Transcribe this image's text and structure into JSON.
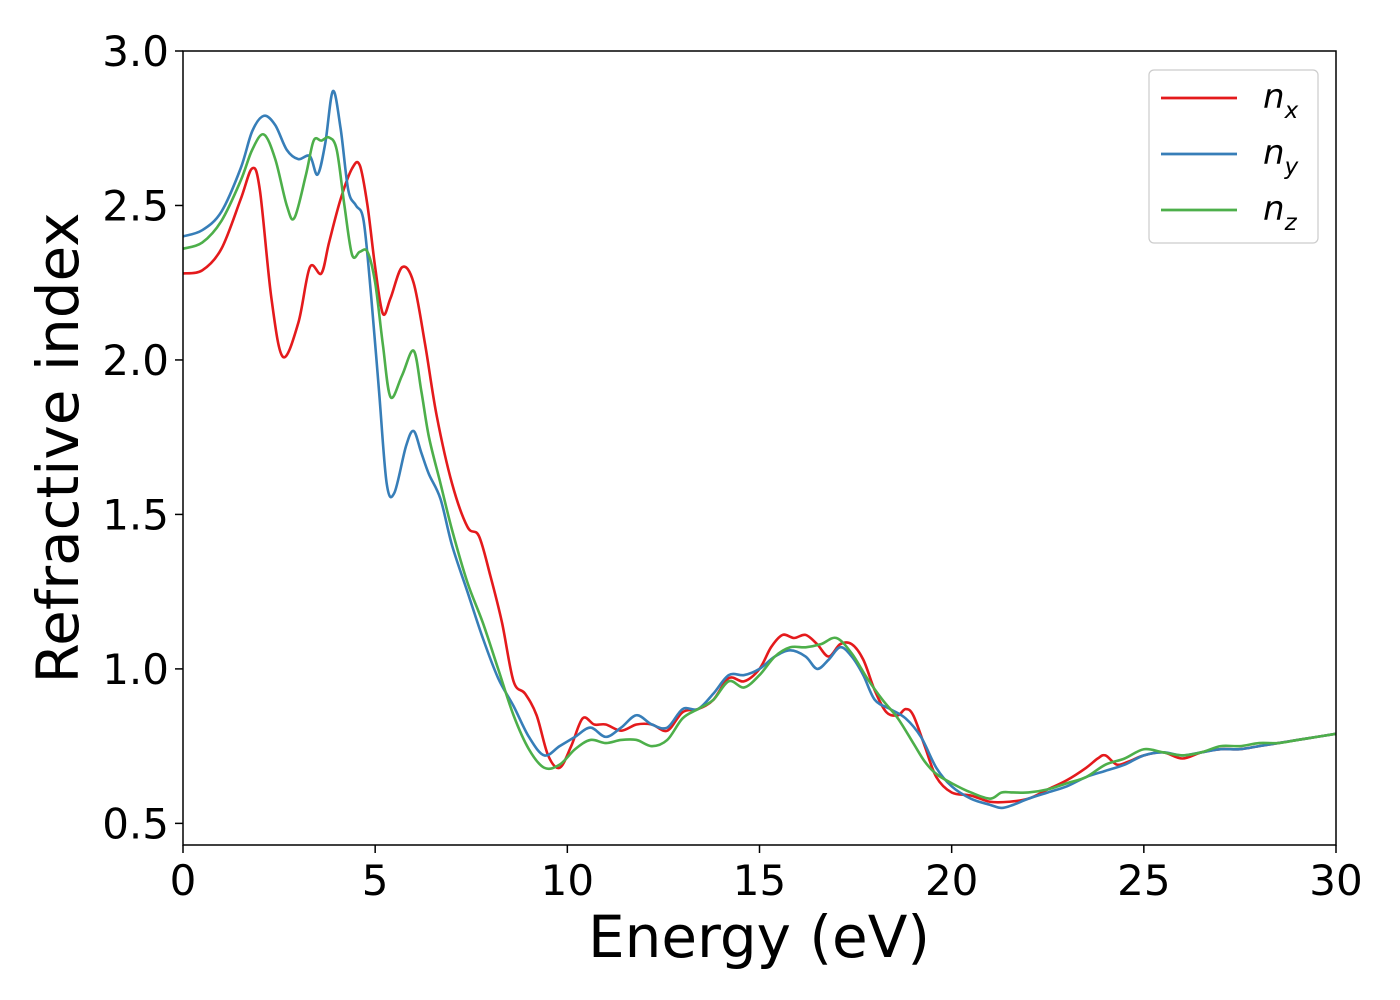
{
  "chart_data": {
    "type": "line",
    "xlabel": "Energy (eV)",
    "ylabel": "Refractive index",
    "xlim": [
      0,
      30
    ],
    "ylim": [
      0.43,
      3.0
    ],
    "xticks": [
      0,
      5,
      10,
      15,
      20,
      25,
      30
    ],
    "xtick_labels": [
      "0",
      "5",
      "10",
      "15",
      "20",
      "25",
      "30"
    ],
    "yticks": [
      0.5,
      1.0,
      1.5,
      2.0,
      2.5,
      3.0
    ],
    "ytick_labels": [
      "0.5",
      "1.0",
      "1.5",
      "2.0",
      "2.5",
      "3.0"
    ],
    "grid": false,
    "legend_position": "upper right",
    "series": [
      {
        "name": "n_x",
        "label_main": "n",
        "label_sub": "x",
        "color": "#e41a1c",
        "x": [
          0,
          0.5,
          1.0,
          1.5,
          1.8,
          2.0,
          2.3,
          2.6,
          3.0,
          3.3,
          3.6,
          3.8,
          4.1,
          4.4,
          4.6,
          4.8,
          5.0,
          5.2,
          5.4,
          5.7,
          6.0,
          6.3,
          6.6,
          7.0,
          7.4,
          7.7,
          8.0,
          8.3,
          8.6,
          8.9,
          9.2,
          9.5,
          9.8,
          10.1,
          10.4,
          10.7,
          11.0,
          11.4,
          11.8,
          12.2,
          12.6,
          13.0,
          13.4,
          13.8,
          14.2,
          14.6,
          15.0,
          15.3,
          15.6,
          15.9,
          16.2,
          16.5,
          16.8,
          17.1,
          17.4,
          17.7,
          18.0,
          18.3,
          18.6,
          18.8,
          19.0,
          19.3,
          19.6,
          20.0,
          20.5,
          21.0,
          21.5,
          22.0,
          22.5,
          23.0,
          23.5,
          23.8,
          24.0,
          24.3,
          24.6,
          25.0,
          25.5,
          26.0,
          26.5,
          27.0,
          27.5,
          28.0,
          28.5,
          29.0,
          29.5,
          30.0
        ],
        "y": [
          2.28,
          2.29,
          2.36,
          2.52,
          2.62,
          2.55,
          2.2,
          2.01,
          2.12,
          2.3,
          2.28,
          2.38,
          2.52,
          2.62,
          2.63,
          2.5,
          2.3,
          2.15,
          2.2,
          2.3,
          2.25,
          2.05,
          1.82,
          1.6,
          1.46,
          1.43,
          1.3,
          1.15,
          0.96,
          0.92,
          0.85,
          0.72,
          0.68,
          0.75,
          0.84,
          0.82,
          0.82,
          0.8,
          0.82,
          0.82,
          0.8,
          0.86,
          0.87,
          0.9,
          0.97,
          0.96,
          1.0,
          1.07,
          1.11,
          1.1,
          1.11,
          1.08,
          1.04,
          1.08,
          1.08,
          1.03,
          0.93,
          0.86,
          0.85,
          0.87,
          0.85,
          0.75,
          0.65,
          0.6,
          0.59,
          0.57,
          0.57,
          0.58,
          0.61,
          0.64,
          0.68,
          0.71,
          0.72,
          0.69,
          0.7,
          0.72,
          0.73,
          0.71,
          0.73,
          0.74,
          0.74,
          0.75,
          0.76,
          0.77,
          0.78,
          0.79
        ]
      },
      {
        "name": "n_y",
        "label_main": "n",
        "label_sub": "y",
        "color": "#377eb8",
        "x": [
          0,
          0.5,
          1.0,
          1.5,
          1.8,
          2.1,
          2.4,
          2.7,
          3.0,
          3.3,
          3.5,
          3.7,
          3.9,
          4.1,
          4.3,
          4.5,
          4.7,
          4.9,
          5.1,
          5.3,
          5.5,
          5.8,
          6.0,
          6.2,
          6.4,
          6.7,
          7.0,
          7.4,
          7.8,
          8.2,
          8.6,
          9.0,
          9.4,
          9.8,
          10.2,
          10.6,
          11.0,
          11.4,
          11.8,
          12.2,
          12.6,
          13.0,
          13.4,
          13.8,
          14.2,
          14.6,
          15.0,
          15.4,
          15.8,
          16.2,
          16.5,
          16.8,
          17.1,
          17.4,
          17.7,
          18.0,
          18.4,
          18.8,
          19.2,
          19.6,
          20.0,
          20.5,
          21.0,
          21.3,
          21.6,
          22.0,
          22.5,
          23.0,
          23.5,
          24.0,
          24.5,
          25.0,
          25.5,
          26.0,
          26.5,
          27.0,
          27.5,
          28.0,
          28.5,
          29.0,
          29.5,
          30.0
        ],
        "y": [
          2.4,
          2.42,
          2.48,
          2.62,
          2.74,
          2.79,
          2.76,
          2.68,
          2.65,
          2.66,
          2.6,
          2.7,
          2.87,
          2.75,
          2.55,
          2.5,
          2.45,
          2.2,
          1.9,
          1.6,
          1.57,
          1.72,
          1.77,
          1.7,
          1.63,
          1.55,
          1.4,
          1.25,
          1.1,
          0.97,
          0.88,
          0.78,
          0.72,
          0.75,
          0.78,
          0.81,
          0.78,
          0.81,
          0.85,
          0.82,
          0.81,
          0.87,
          0.87,
          0.92,
          0.98,
          0.98,
          1.0,
          1.04,
          1.06,
          1.04,
          1.0,
          1.03,
          1.07,
          1.04,
          0.98,
          0.9,
          0.87,
          0.84,
          0.78,
          0.68,
          0.62,
          0.58,
          0.56,
          0.55,
          0.56,
          0.58,
          0.6,
          0.62,
          0.65,
          0.67,
          0.69,
          0.72,
          0.73,
          0.72,
          0.73,
          0.74,
          0.74,
          0.75,
          0.76,
          0.77,
          0.78,
          0.79
        ]
      },
      {
        "name": "n_z",
        "label_main": "n",
        "label_sub": "z",
        "color": "#4daf4a",
        "x": [
          0,
          0.5,
          1.0,
          1.5,
          1.8,
          2.1,
          2.4,
          2.7,
          2.9,
          3.2,
          3.4,
          3.6,
          3.8,
          4.0,
          4.2,
          4.4,
          4.6,
          4.8,
          5.0,
          5.2,
          5.4,
          5.7,
          6.0,
          6.2,
          6.4,
          6.7,
          7.0,
          7.4,
          7.8,
          8.2,
          8.6,
          9.0,
          9.4,
          9.8,
          10.2,
          10.6,
          11.0,
          11.4,
          11.8,
          12.2,
          12.6,
          13.0,
          13.4,
          13.8,
          14.2,
          14.6,
          15.0,
          15.4,
          15.8,
          16.2,
          16.6,
          17.0,
          17.4,
          17.8,
          18.2,
          18.6,
          19.0,
          19.3,
          19.6,
          20.0,
          20.5,
          21.0,
          21.3,
          21.6,
          22.0,
          22.5,
          23.0,
          23.5,
          24.0,
          24.5,
          25.0,
          25.5,
          26.0,
          26.5,
          27.0,
          27.5,
          28.0,
          28.5,
          29.0,
          29.5,
          30.0
        ],
        "y": [
          2.36,
          2.38,
          2.45,
          2.58,
          2.68,
          2.73,
          2.65,
          2.5,
          2.46,
          2.6,
          2.71,
          2.71,
          2.72,
          2.68,
          2.5,
          2.34,
          2.35,
          2.35,
          2.25,
          2.05,
          1.88,
          1.95,
          2.03,
          1.9,
          1.75,
          1.6,
          1.45,
          1.28,
          1.15,
          1.0,
          0.85,
          0.74,
          0.68,
          0.69,
          0.74,
          0.77,
          0.76,
          0.77,
          0.77,
          0.75,
          0.77,
          0.84,
          0.87,
          0.9,
          0.96,
          0.94,
          0.98,
          1.04,
          1.07,
          1.07,
          1.08,
          1.1,
          1.05,
          0.97,
          0.9,
          0.84,
          0.76,
          0.7,
          0.66,
          0.63,
          0.6,
          0.58,
          0.6,
          0.6,
          0.6,
          0.61,
          0.63,
          0.65,
          0.69,
          0.71,
          0.74,
          0.73,
          0.72,
          0.73,
          0.75,
          0.75,
          0.76,
          0.76,
          0.77,
          0.78,
          0.79
        ]
      }
    ]
  }
}
